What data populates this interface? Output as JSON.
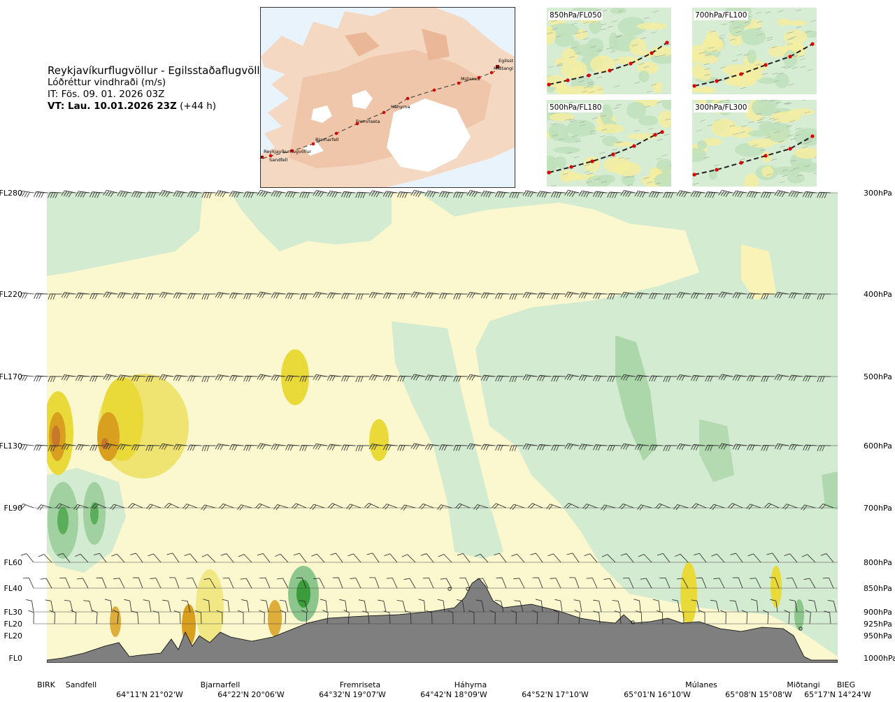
{
  "title": {
    "route": "Reykjavíkurflugvöllur - Egilsstaðaflugvöllur",
    "variable": "Lóðréttur vindhraði (m/s)",
    "issue_time": "IT: Fös. 09. 01. 2026 03Z",
    "valid_time": "VT: Lau. 10.01.2026 23Z",
    "lead": "(+44 h)"
  },
  "map": {
    "places": [
      "Reykjavíkurflugvöllur",
      "Sandfell",
      "Bjarnarfell",
      "Fremriseta",
      "Háhyrna",
      "Múlanes",
      "Miðtangi",
      "Egilsst"
    ]
  },
  "panels": [
    "850hPa/FL050",
    "700hPa/FL100",
    "500hPa/FL180",
    "300hPa/FL300"
  ],
  "chart_data": {
    "type": "heatmap",
    "title": "Lóðréttur vindhraði (m/s)",
    "left_axis_levels": [
      "FL280",
      "FL220",
      "FL170",
      "FL130",
      "FL90",
      "FL60",
      "FL40",
      "FL30",
      "FL20",
      "FL20",
      "FL0"
    ],
    "right_axis_levels": [
      "300hPa",
      "400hPa",
      "500hPa",
      "600hPa",
      "700hPa",
      "800hPa",
      "850hPa",
      "900hPa",
      "925hPa",
      "950hPa",
      "1000hPa"
    ],
    "pressure_levels_hpa": [
      300,
      400,
      500,
      600,
      700,
      800,
      850,
      900,
      925,
      950,
      1000
    ],
    "stations": [
      "BIRK",
      "Sandfell",
      "Bjarnarfell",
      "Fremriseta",
      "Háhyrna",
      "Múlanes",
      "Miðtangi",
      "BIEG"
    ],
    "coordinates": [
      "64°11'N 21°02'W",
      "64°22'N 20°06'W",
      "64°32'N 19°07'W",
      "64°42'N 18°09'W",
      "64°52'N 17°10'W",
      "65°01'N 16°10'W",
      "65°08'N 15°08'W",
      "65°17'N 14°24'W"
    ],
    "colors": {
      "strong_down": "#3a9c3a",
      "down": "#8cc68c",
      "weak_down": "#d3ebd0",
      "neutral": "#fdfbe6",
      "weak_up": "#faf3b8",
      "up": "#e9da3a",
      "strong_up": "#d9a020",
      "max_up": "#c8782a",
      "terrain": "#7f7f7f"
    }
  }
}
